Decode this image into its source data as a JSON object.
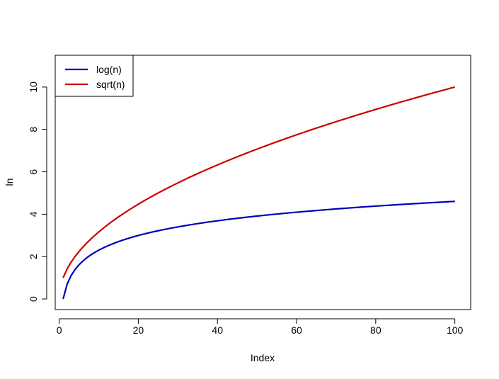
{
  "chart_data": {
    "type": "line",
    "title": "",
    "xlabel": "Index",
    "ylabel": "ln",
    "xlim": [
      -1,
      104
    ],
    "ylim": [
      -0.5,
      11.5
    ],
    "x_ticks": [
      0,
      20,
      40,
      60,
      80,
      100
    ],
    "y_ticks": [
      0,
      2,
      4,
      6,
      8,
      10
    ],
    "grid": false,
    "legend": {
      "position": "top-left",
      "entries": [
        {
          "label": "log(n)",
          "color": "#0000b8"
        },
        {
          "label": "sqrt(n)",
          "color": "#cc0000"
        }
      ]
    },
    "x": {
      "from": 1,
      "to": 100,
      "step": 1
    },
    "series": [
      {
        "name": "log(n)",
        "function": "log",
        "color": "#0000b8"
      },
      {
        "name": "sqrt(n)",
        "function": "sqrt",
        "color": "#cc0000"
      }
    ]
  }
}
